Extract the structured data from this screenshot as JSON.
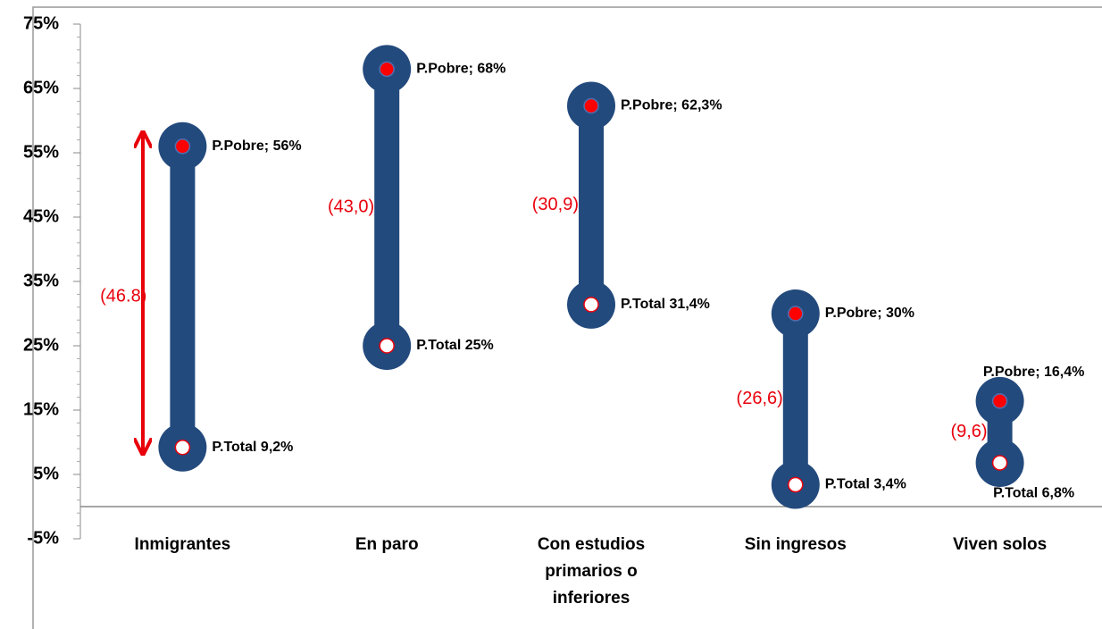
{
  "chart_data": {
    "type": "dumbbell",
    "categories": [
      "Inmigrantes",
      "En paro",
      "Con estudios primarios o inferiores",
      "Sin ingresos",
      "Viven solos"
    ],
    "series": [
      {
        "name": "P.Pobre",
        "color": "#ff0000",
        "values": [
          56,
          68,
          62.3,
          30,
          16.4
        ],
        "value_labels": [
          "P.Pobre; 56%",
          "P.Pobre; 68%",
          "P.Pobre; 62,3%",
          "P.Pobre; 30%",
          "P.Pobre; 16,4%"
        ]
      },
      {
        "name": "P.Total",
        "color": "#ffffff",
        "values": [
          9.2,
          25,
          31.4,
          3.4,
          6.8
        ],
        "value_labels": [
          "P.Total 9,2%",
          "P.Total 25%",
          "P.Total 31,4%",
          "P.Total 3,4%",
          "P.Total 6,8%"
        ]
      }
    ],
    "gaps": {
      "values": [
        46.8,
        43.0,
        30.9,
        26.6,
        9.6
      ],
      "value_labels": [
        "(46.8)",
        "(43,0)",
        "(30,9)",
        "(26,6)",
        "(9,6)"
      ]
    },
    "bar_color": "#234a7d",
    "ylim": [
      -5,
      75
    ],
    "yticks": [
      {
        "value": -5,
        "label": "-5%"
      },
      {
        "value": 5,
        "label": "5%"
      },
      {
        "value": 15,
        "label": "15%"
      },
      {
        "value": 25,
        "label": "25%"
      },
      {
        "value": 35,
        "label": "35%"
      },
      {
        "value": 45,
        "label": "45%"
      },
      {
        "value": 55,
        "label": "55%"
      },
      {
        "value": 65,
        "label": "65%"
      },
      {
        "value": 75,
        "label": "75%"
      }
    ]
  }
}
